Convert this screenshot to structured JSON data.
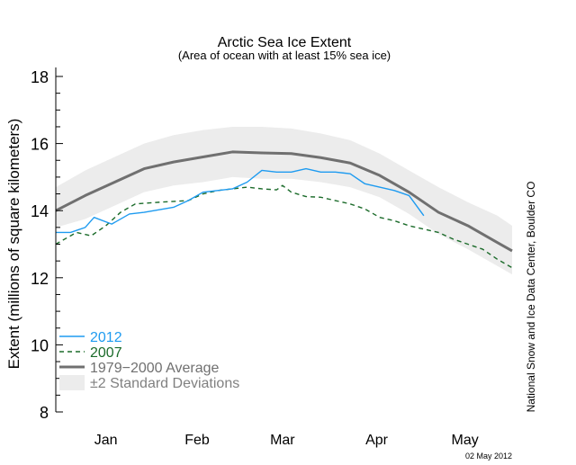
{
  "chart_data": {
    "type": "line",
    "title": "Arctic Sea Ice Extent",
    "subtitle": "(Area of ocean with at least 15% sea ice)",
    "ylabel": "Extent (millions of square kilometers)",
    "xlabel": "",
    "ylim": [
      8,
      18
    ],
    "yticks": [
      8,
      10,
      12,
      14,
      16,
      18
    ],
    "xlim_days": [
      0,
      155
    ],
    "month_labels": [
      "Jan",
      "Feb",
      "Mar",
      "Apr",
      "May"
    ],
    "month_label_days": [
      17,
      48,
      77,
      109,
      139
    ],
    "grid": false,
    "legend_position": "bottom-left",
    "series": [
      {
        "name": "2012",
        "color": "#1e9bf0",
        "style": "solid",
        "x": [
          0,
          5,
          10,
          13,
          19,
          25,
          30,
          40,
          45,
          50,
          55,
          60,
          65,
          70,
          75,
          80,
          85,
          90,
          95,
          100,
          105,
          110,
          115,
          120,
          125
        ],
        "values": [
          13.35,
          13.35,
          13.5,
          13.8,
          13.6,
          13.9,
          13.95,
          14.1,
          14.3,
          14.55,
          14.6,
          14.65,
          14.85,
          15.2,
          15.15,
          15.15,
          15.25,
          15.15,
          15.15,
          15.1,
          14.8,
          14.7,
          14.6,
          14.45,
          13.85
        ]
      },
      {
        "name": "2007",
        "color": "#1b6b2a",
        "style": "dashed",
        "x": [
          0,
          7,
          12,
          17,
          22,
          27,
          35,
          45,
          50,
          55,
          60,
          65,
          70,
          75,
          77,
          80,
          85,
          90,
          95,
          100,
          105,
          110,
          115,
          120,
          125,
          130,
          135,
          140,
          145,
          150,
          155
        ],
        "values": [
          13.0,
          13.35,
          13.25,
          13.55,
          13.95,
          14.2,
          14.25,
          14.3,
          14.5,
          14.6,
          14.65,
          14.7,
          14.65,
          14.62,
          14.75,
          14.55,
          14.42,
          14.4,
          14.3,
          14.2,
          14.05,
          13.8,
          13.7,
          13.55,
          13.45,
          13.35,
          13.15,
          13.0,
          12.85,
          12.55,
          12.3
        ]
      },
      {
        "name": "1979−2000 Average",
        "color": "#707070",
        "style": "thick",
        "x": [
          0,
          10,
          20,
          30,
          40,
          50,
          60,
          70,
          80,
          90,
          100,
          110,
          120,
          130,
          140,
          150,
          155
        ],
        "values": [
          14.0,
          14.45,
          14.85,
          15.25,
          15.45,
          15.6,
          15.75,
          15.72,
          15.7,
          15.58,
          15.42,
          15.05,
          14.55,
          13.95,
          13.55,
          13.05,
          12.8
        ]
      }
    ],
    "band": {
      "name": "±2 Standard Deviations",
      "color": "#ececec",
      "x": [
        0,
        10,
        20,
        30,
        40,
        50,
        60,
        70,
        80,
        90,
        100,
        110,
        120,
        130,
        140,
        150,
        155
      ],
      "upper": [
        14.7,
        15.2,
        15.6,
        16.0,
        16.25,
        16.4,
        16.5,
        16.5,
        16.45,
        16.3,
        16.1,
        15.7,
        15.2,
        14.7,
        14.25,
        13.85,
        13.55
      ],
      "lower": [
        13.5,
        13.75,
        14.15,
        14.55,
        14.75,
        14.85,
        15.0,
        14.95,
        14.95,
        14.85,
        14.7,
        14.4,
        13.9,
        13.3,
        12.85,
        12.35,
        12.1
      ]
    },
    "credit": "National Snow and Ice Data Center, Boulder CO",
    "date": "02 May 2012"
  }
}
